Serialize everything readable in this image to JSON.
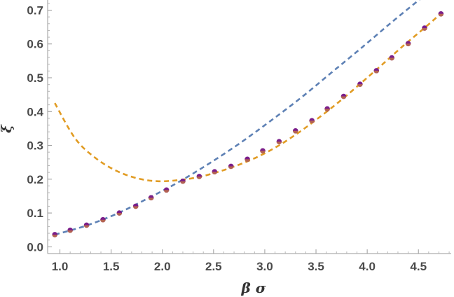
{
  "chart_data": {
    "type": "line",
    "title": "",
    "xlabel": "β σ",
    "ylabel": "ξ",
    "xlim": [
      0.88,
      4.82
    ],
    "ylim": [
      -0.02,
      0.73
    ],
    "xticks": [
      1.0,
      1.5,
      2.0,
      2.5,
      3.0,
      3.5,
      4.0,
      4.5
    ],
    "xtick_labels": [
      "1.0",
      "1.5",
      "2.0",
      "2.5",
      "3.0",
      "3.5",
      "4.0",
      "4.5"
    ],
    "yticks": [
      0.0,
      0.1,
      0.2,
      0.3,
      0.4,
      0.5,
      0.6,
      0.7
    ],
    "ytick_labels": [
      "0.0",
      "0.1",
      "0.2",
      "0.3",
      "0.4",
      "0.5",
      "0.6",
      "0.7"
    ],
    "grid": false,
    "legend": "none",
    "series": [
      {
        "style": "dashed",
        "color": "#5E81B5",
        "x": [
          0.95,
          1.25,
          1.55,
          1.85,
          2.15,
          2.45,
          2.75,
          3.05,
          3.35,
          3.65,
          3.95,
          4.25,
          4.55,
          4.65
        ],
        "y": [
          0.036,
          0.062,
          0.097,
          0.142,
          0.19,
          0.245,
          0.305,
          0.371,
          0.44,
          0.515,
          0.59,
          0.667,
          0.741,
          0.765
        ]
      },
      {
        "style": "dashed",
        "color": "#E19C24",
        "x": [
          0.95,
          1.15,
          1.35,
          1.55,
          1.75,
          1.95,
          2.15,
          2.35,
          2.55,
          2.75,
          2.95,
          3.15,
          3.35,
          3.55,
          3.75,
          3.95,
          4.15,
          4.35,
          4.55,
          4.72
        ],
        "y": [
          0.425,
          0.32,
          0.262,
          0.225,
          0.203,
          0.194,
          0.197,
          0.206,
          0.222,
          0.243,
          0.269,
          0.302,
          0.342,
          0.387,
          0.435,
          0.487,
          0.54,
          0.594,
          0.645,
          0.69
        ]
      },
      {
        "style": "markers",
        "color": "#7B1E8A",
        "fill_secondary": "#E19C24",
        "x": [
          0.95,
          1.1,
          1.26,
          1.42,
          1.58,
          1.74,
          1.89,
          2.04,
          2.2,
          2.36,
          2.51,
          2.67,
          2.83,
          2.98,
          3.14,
          3.3,
          3.46,
          3.61,
          3.77,
          3.93,
          4.09,
          4.24,
          4.4,
          4.56,
          4.72
        ],
        "y": [
          0.036,
          0.049,
          0.064,
          0.08,
          0.1,
          0.12,
          0.145,
          0.168,
          0.194,
          0.208,
          0.222,
          0.238,
          0.259,
          0.284,
          0.311,
          0.343,
          0.373,
          0.408,
          0.445,
          0.481,
          0.521,
          0.559,
          0.601,
          0.647,
          0.689
        ]
      }
    ]
  }
}
